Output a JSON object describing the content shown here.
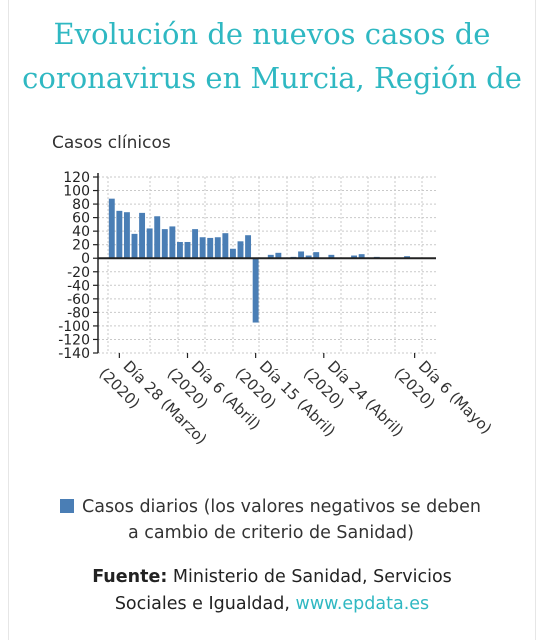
{
  "title_line1": "Evolución de nuevos casos de",
  "title_line2": "coronavirus en Murcia, Región de",
  "colors": {
    "title": "#2fb8c2",
    "bar": "#4a7eb5",
    "link": "#2fb8c2"
  },
  "chart_data": {
    "type": "bar",
    "ylabel": "Casos clínicos",
    "ylim": [
      -140,
      120
    ],
    "y_ticks": [
      120,
      100,
      80,
      60,
      40,
      20,
      0,
      -20,
      -40,
      -60,
      -80,
      -100,
      -120,
      -140
    ],
    "x_tick_labels": [
      {
        "label": "Día 28 (Marzo) (2020)",
        "index": 1
      },
      {
        "label": "Día 6 (Abril) (2020)",
        "index": 10
      },
      {
        "label": "Día 15 (Abril) (2020)",
        "index": 19
      },
      {
        "label": "Día 24 (Abril) (2020)",
        "index": 28
      },
      {
        "label": "Día 6 (Mayo) (2020)",
        "index": 40
      }
    ],
    "grid": true,
    "series": [
      {
        "name": "Casos diarios (los valores negativos se deben a cambio de criterio de Sanidad)",
        "values": [
          88,
          70,
          68,
          36,
          67,
          44,
          62,
          43,
          47,
          24,
          24,
          43,
          31,
          30,
          31,
          37,
          14,
          25,
          34,
          -95,
          0,
          5,
          8,
          0,
          2,
          10,
          4,
          9,
          0,
          5,
          0,
          0,
          4,
          6,
          0,
          2,
          1,
          0,
          1,
          3,
          0,
          0
        ]
      }
    ]
  },
  "legend_text_line1": "Casos diarios (los valores negativos se deben",
  "legend_text_line2": "a cambio de criterio de Sanidad)",
  "source_label": "Fuente:",
  "source_text": " Ministerio de Sanidad, Servicios",
  "source_text2": "Sociales e Igualdad, ",
  "source_link": "www.epdata.es"
}
